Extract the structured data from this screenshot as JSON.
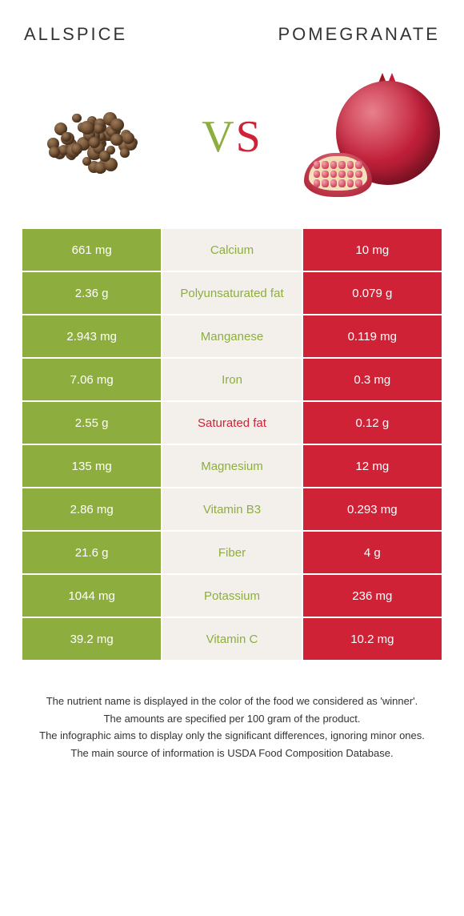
{
  "colors": {
    "left": "#8dae3e",
    "right": "#cf2236",
    "mid_bg": "#f3f0eb",
    "text": "#333333",
    "white": "#ffffff"
  },
  "header": {
    "left": "Allspice",
    "right": "Pomegranate"
  },
  "vs": {
    "v": "V",
    "s": "S"
  },
  "rows": [
    {
      "left": "661 mg",
      "label": "Calcium",
      "right": "10 mg",
      "winner": "left"
    },
    {
      "left": "2.36 g",
      "label": "Polyunsaturated fat",
      "right": "0.079 g",
      "winner": "left"
    },
    {
      "left": "2.943 mg",
      "label": "Manganese",
      "right": "0.119 mg",
      "winner": "left"
    },
    {
      "left": "7.06 mg",
      "label": "Iron",
      "right": "0.3 mg",
      "winner": "left"
    },
    {
      "left": "2.55 g",
      "label": "Saturated fat",
      "right": "0.12 g",
      "winner": "right"
    },
    {
      "left": "135 mg",
      "label": "Magnesium",
      "right": "12 mg",
      "winner": "left"
    },
    {
      "left": "2.86 mg",
      "label": "Vitamin B3",
      "right": "0.293 mg",
      "winner": "left"
    },
    {
      "left": "21.6 g",
      "label": "Fiber",
      "right": "4 g",
      "winner": "left"
    },
    {
      "left": "1044 mg",
      "label": "Potassium",
      "right": "236 mg",
      "winner": "left"
    },
    {
      "left": "39.2 mg",
      "label": "Vitamin C",
      "right": "10.2 mg",
      "winner": "left"
    }
  ],
  "footer": {
    "line1": "The nutrient name is displayed in the color of the food we considered as 'winner'.",
    "line2": "The amounts are specified per 100 gram of the product.",
    "line3": "The infographic aims to display only the significant differences, ignoring minor ones.",
    "line4": "The main source of information is USDA Food Composition Database."
  }
}
